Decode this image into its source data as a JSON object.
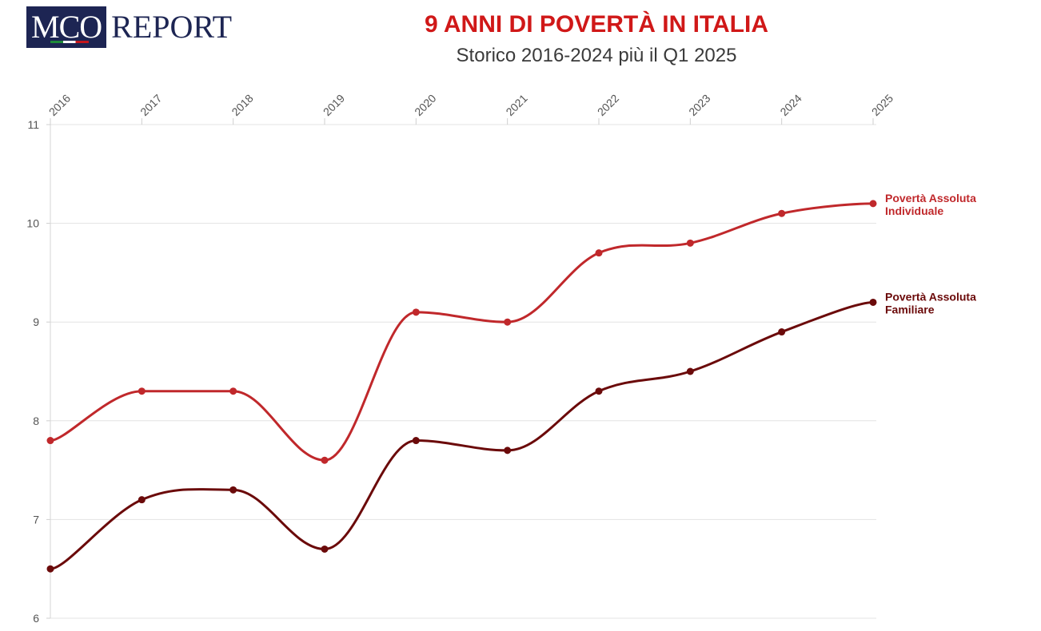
{
  "logo": {
    "part1": "MCO",
    "part2": "REPORT"
  },
  "header": {
    "title": "9 ANNI DI POVERTÀ IN ITALIA",
    "subtitle": "Storico 2016-2024 più il Q1 2025"
  },
  "chart_data": {
    "type": "line",
    "x": [
      "2016",
      "2017",
      "2018",
      "2019",
      "2020",
      "2021",
      "2022",
      "2023",
      "2024",
      "2025"
    ],
    "ylim": [
      6,
      11
    ],
    "yticks": [
      6,
      7,
      8,
      9,
      10,
      11
    ],
    "grid": true,
    "legend_placement": "right end of lines",
    "series": [
      {
        "name_line1": "Povertà Assoluta",
        "name_line2": "Individuale",
        "color": "#c0282b",
        "values": [
          7.8,
          8.3,
          8.3,
          7.6,
          9.1,
          9.0,
          9.7,
          9.8,
          10.1,
          10.2
        ]
      },
      {
        "name_line1": "Povertà Assoluta",
        "name_line2": "Familiare",
        "color": "#6b0a0a",
        "values": [
          6.5,
          7.2,
          7.3,
          6.7,
          7.8,
          7.7,
          8.3,
          8.5,
          8.9,
          9.2
        ]
      }
    ]
  }
}
